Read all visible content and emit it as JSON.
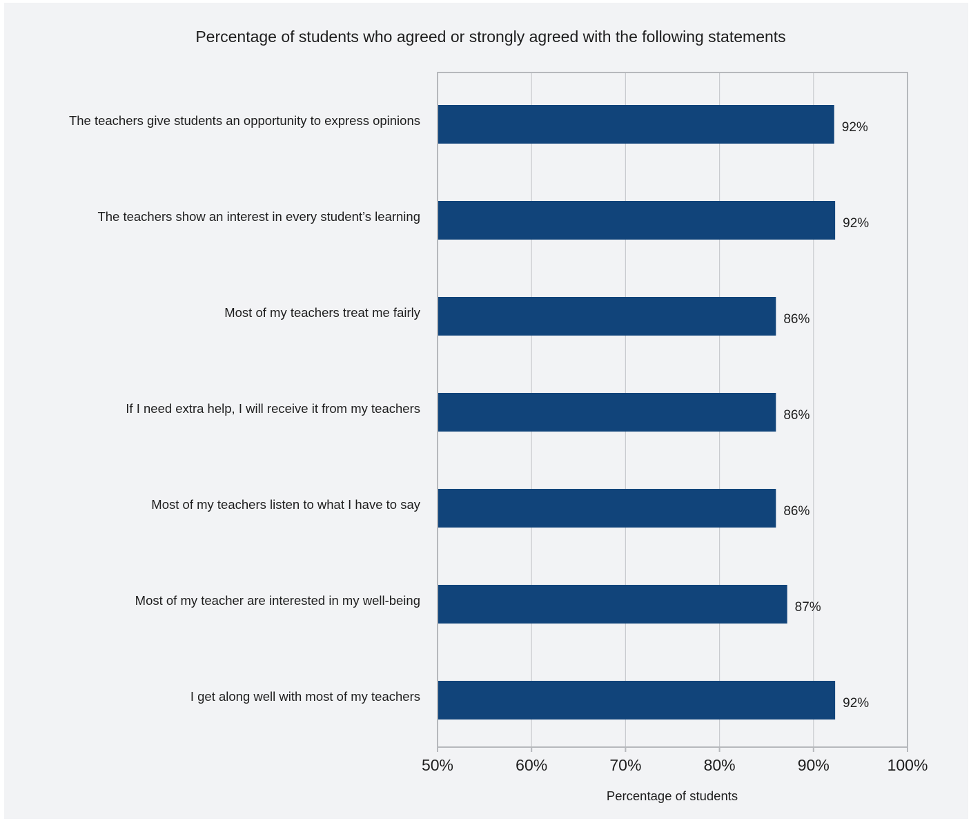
{
  "chart_data": {
    "type": "bar",
    "orientation": "horizontal",
    "title": "Percentage of students who agreed or strongly agreed with the following statements",
    "xlabel": "Percentage of students",
    "ylabel": "",
    "xlim": [
      50,
      100
    ],
    "x_ticks": [
      50,
      60,
      70,
      80,
      90,
      100
    ],
    "x_tick_labels": [
      "50%",
      "60%",
      "70%",
      "80%",
      "90%",
      "100%"
    ],
    "grid": "vertical",
    "legend": "none",
    "bar_color": "#11447a",
    "categories": [
      "The teachers give students an opportunity to express opinions",
      "The teachers show an interest in every student’s learning",
      "Most of my teachers treat me fairly",
      "If I need extra help, I will receive it from my teachers",
      "Most of my teachers listen to what I have to say",
      "Most of my teacher are interested in my well-being",
      "I get along well with most of my teachers"
    ],
    "values": [
      92.2,
      92.3,
      86.0,
      86.0,
      86.0,
      87.2,
      92.3
    ],
    "data_labels": [
      "92%",
      "92%",
      "86%",
      "86%",
      "86%",
      "87%",
      "92%"
    ]
  }
}
